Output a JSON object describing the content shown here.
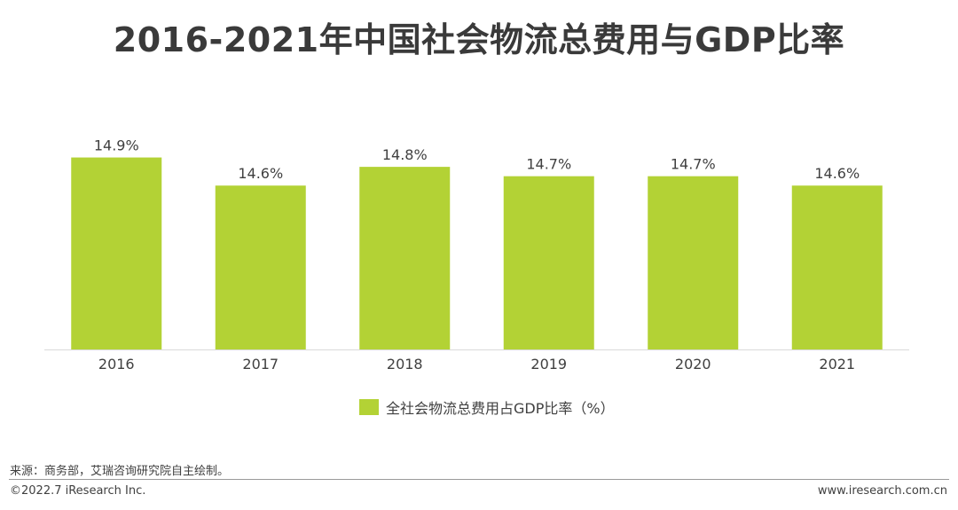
{
  "title": "2016-2021年中国社会物流总费用与GDP比率",
  "legend": {
    "label": "全社会物流总费用占GDP比率（%）"
  },
  "source": "来源：商务部，艾瑞咨询研究院自主绘制。",
  "copyright": "©2022.7 iResearch Inc.",
  "website": "www.iresearch.com.cn",
  "colors": {
    "bar": "#b3d235",
    "axis": "#d9d9d9",
    "text": "#404040"
  },
  "chart_data": {
    "type": "bar",
    "title": "2016-2021年中国社会物流总费用与GDP比率",
    "categories": [
      "2016",
      "2017",
      "2018",
      "2019",
      "2020",
      "2021"
    ],
    "series": [
      {
        "name": "全社会物流总费用占GDP比率（%）",
        "values": [
          14.9,
          14.6,
          14.8,
          14.7,
          14.7,
          14.6
        ]
      }
    ],
    "data_labels": [
      "14.9%",
      "14.6%",
      "14.8%",
      "14.7%",
      "14.7%",
      "14.6%"
    ],
    "ylim": [
      12.85,
      15.0
    ],
    "grid": false,
    "legend_position": "bottom"
  }
}
